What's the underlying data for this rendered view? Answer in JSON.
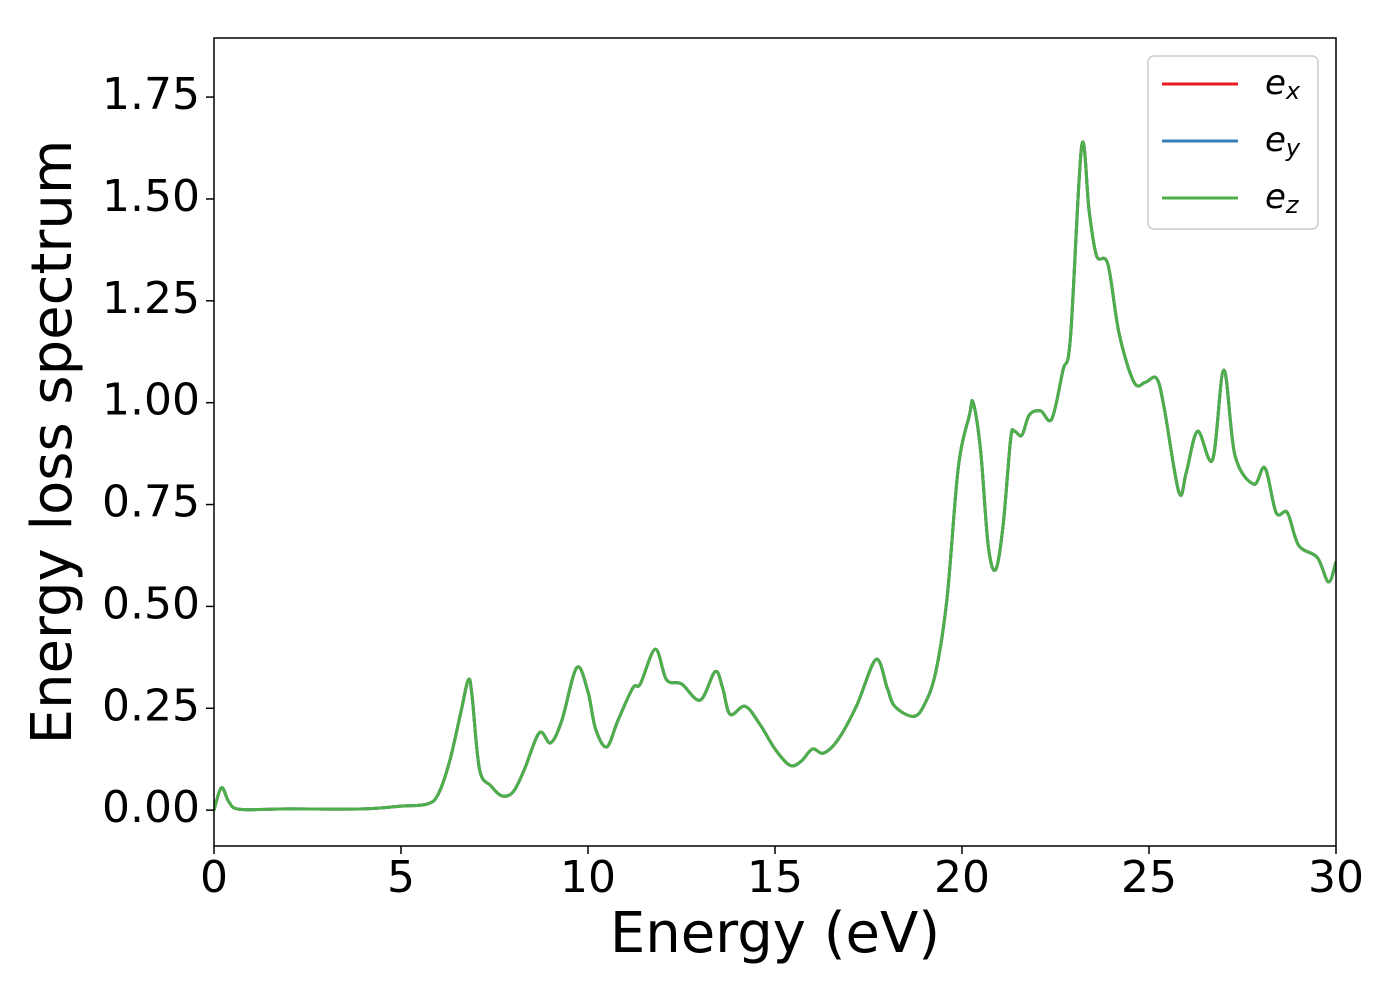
{
  "chart_data": {
    "type": "line",
    "xlabel": "Energy (eV)",
    "ylabel": "Energy loss spectrum",
    "x": [
      0,
      0.2,
      0.4,
      0.7,
      2,
      4,
      5,
      5.7,
      6.0,
      6.3,
      6.6,
      6.8,
      6.9,
      7.1,
      7.4,
      7.7,
      8.0,
      8.3,
      8.7,
      9.0,
      9.3,
      9.7,
      10.0,
      10.2,
      10.5,
      10.8,
      11.2,
      11.4,
      11.8,
      12.1,
      12.5,
      13.0,
      13.4,
      13.6,
      13.8,
      14.2,
      14.6,
      15.0,
      15.4,
      15.7,
      16.0,
      16.3,
      16.7,
      17.2,
      17.7,
      18.0,
      18.2,
      18.7,
      19.0,
      19.3,
      19.6,
      19.9,
      20.2,
      20.3,
      20.5,
      20.7,
      20.9,
      21.1,
      21.3,
      21.4,
      21.6,
      21.8,
      22.1,
      22.4,
      22.7,
      22.9,
      23.2,
      23.4,
      23.6,
      23.9,
      24.2,
      24.6,
      24.9,
      25.2,
      25.4,
      25.8,
      26.0,
      26.3,
      26.7,
      27.0,
      27.3,
      27.8,
      28.1,
      28.4,
      28.7,
      29.0,
      29.5,
      29.8,
      30.0
    ],
    "series": [
      {
        "name": "ex",
        "color": "#e41a1c",
        "values": [
          0,
          0.055,
          0.02,
          0.002,
          0.003,
          0.003,
          0.01,
          0.015,
          0.04,
          0.12,
          0.24,
          0.32,
          0.28,
          0.1,
          0.06,
          0.035,
          0.045,
          0.1,
          0.19,
          0.165,
          0.22,
          0.35,
          0.29,
          0.2,
          0.155,
          0.22,
          0.3,
          0.31,
          0.395,
          0.32,
          0.31,
          0.27,
          0.34,
          0.3,
          0.235,
          0.255,
          0.21,
          0.15,
          0.11,
          0.12,
          0.15,
          0.14,
          0.175,
          0.26,
          0.37,
          0.3,
          0.255,
          0.23,
          0.26,
          0.34,
          0.52,
          0.84,
          0.97,
          1.0,
          0.88,
          0.65,
          0.59,
          0.7,
          0.91,
          0.93,
          0.92,
          0.97,
          0.98,
          0.96,
          1.08,
          1.16,
          1.63,
          1.47,
          1.36,
          1.34,
          1.17,
          1.05,
          1.05,
          1.06,
          0.99,
          0.78,
          0.83,
          0.93,
          0.86,
          1.08,
          0.87,
          0.8,
          0.84,
          0.73,
          0.73,
          0.65,
          0.62,
          0.56,
          0.61
        ]
      },
      {
        "name": "ey",
        "color": "#377eb8",
        "values": [
          0,
          0.055,
          0.02,
          0.002,
          0.003,
          0.003,
          0.01,
          0.015,
          0.04,
          0.12,
          0.24,
          0.32,
          0.28,
          0.1,
          0.06,
          0.035,
          0.045,
          0.1,
          0.19,
          0.165,
          0.22,
          0.35,
          0.29,
          0.2,
          0.155,
          0.22,
          0.3,
          0.31,
          0.395,
          0.32,
          0.31,
          0.27,
          0.34,
          0.3,
          0.235,
          0.255,
          0.21,
          0.15,
          0.11,
          0.12,
          0.15,
          0.14,
          0.175,
          0.26,
          0.37,
          0.3,
          0.255,
          0.23,
          0.26,
          0.34,
          0.52,
          0.84,
          0.97,
          1.0,
          0.88,
          0.65,
          0.59,
          0.7,
          0.91,
          0.93,
          0.92,
          0.97,
          0.98,
          0.96,
          1.08,
          1.16,
          1.63,
          1.47,
          1.36,
          1.34,
          1.17,
          1.05,
          1.05,
          1.06,
          0.99,
          0.78,
          0.83,
          0.93,
          0.86,
          1.08,
          0.87,
          0.8,
          0.84,
          0.73,
          0.73,
          0.65,
          0.62,
          0.56,
          0.61
        ]
      },
      {
        "name": "ez",
        "color": "#4daf4a",
        "values": [
          0,
          0.055,
          0.02,
          0.002,
          0.003,
          0.003,
          0.01,
          0.015,
          0.04,
          0.12,
          0.24,
          0.32,
          0.28,
          0.1,
          0.06,
          0.035,
          0.045,
          0.1,
          0.19,
          0.165,
          0.22,
          0.35,
          0.29,
          0.2,
          0.155,
          0.22,
          0.3,
          0.31,
          0.395,
          0.32,
          0.31,
          0.27,
          0.34,
          0.3,
          0.235,
          0.255,
          0.21,
          0.15,
          0.11,
          0.12,
          0.15,
          0.14,
          0.175,
          0.26,
          0.37,
          0.3,
          0.255,
          0.23,
          0.26,
          0.34,
          0.52,
          0.84,
          0.97,
          1.0,
          0.88,
          0.65,
          0.59,
          0.7,
          0.91,
          0.93,
          0.92,
          0.97,
          0.98,
          0.96,
          1.08,
          1.16,
          1.63,
          1.47,
          1.36,
          1.34,
          1.17,
          1.05,
          1.05,
          1.06,
          0.99,
          0.78,
          0.83,
          0.93,
          0.86,
          1.08,
          0.87,
          0.8,
          0.84,
          0.73,
          0.73,
          0.65,
          0.62,
          0.56,
          0.61
        ]
      }
    ],
    "xlim": [
      0,
      30
    ],
    "ylim": [
      -0.088,
      1.895
    ],
    "xticks": [
      0,
      5,
      10,
      15,
      20,
      25,
      30
    ],
    "yticks": [
      {
        "value": 0,
        "label": "0.00"
      },
      {
        "value": 0.25,
        "label": "0.25"
      },
      {
        "value": 0.5,
        "label": "0.50"
      },
      {
        "value": 0.75,
        "label": "0.75"
      },
      {
        "value": 1,
        "label": "1.00"
      },
      {
        "value": 1.25,
        "label": "1.25"
      },
      {
        "value": 1.5,
        "label": "1.50"
      },
      {
        "value": 1.75,
        "label": "1.75"
      }
    ],
    "grid": false,
    "legend": "upper right"
  }
}
